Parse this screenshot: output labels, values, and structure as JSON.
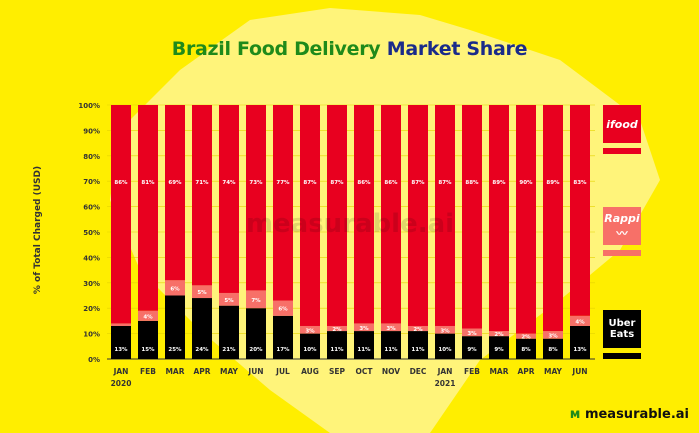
{
  "title": {
    "part1": "Brazil Food Delivery",
    "part2": "Market Share"
  },
  "brand": "measurable.ai",
  "watermark": "measurable.ai",
  "legend": [
    {
      "name": "ifood",
      "color": "#e8001f"
    },
    {
      "name": "Rappi",
      "color": "#f77068"
    },
    {
      "name": "Uber Eats",
      "color": "#000000"
    }
  ],
  "chart_data": {
    "type": "bar",
    "stacked": true,
    "title": "Brazil Food Delivery Market Share",
    "ylabel": "% of Total Charged (USD)",
    "ylim": [
      0,
      100
    ],
    "yticks": [
      "0%",
      "10%",
      "20%",
      "30%",
      "40%",
      "50%",
      "60%",
      "70%",
      "80%",
      "90%",
      "100%"
    ],
    "categories": [
      "JAN",
      "FEB",
      "MAR",
      "APR",
      "MAY",
      "JUN",
      "JUL",
      "AUG",
      "SEP",
      "OCT",
      "NOV",
      "DEC",
      "JAN",
      "FEB",
      "MAR",
      "APR",
      "MAY",
      "JUN"
    ],
    "year_labels": {
      "0": "2020",
      "12": "2021"
    },
    "series": [
      {
        "name": "Uber Eats",
        "color": "#000000",
        "values": [
          13,
          15,
          25,
          24,
          21,
          20,
          17,
          10,
          11,
          11,
          11,
          11,
          10,
          9,
          9,
          8,
          8,
          13
        ]
      },
      {
        "name": "Rappi",
        "color": "#f77068",
        "values": [
          1,
          4,
          6,
          5,
          5,
          7,
          6,
          3,
          2,
          3,
          3,
          2,
          3,
          3,
          2,
          2,
          3,
          4
        ]
      },
      {
        "name": "ifood",
        "color": "#e8001f",
        "values": [
          86,
          81,
          69,
          71,
          74,
          73,
          77,
          87,
          87,
          86,
          86,
          87,
          87,
          88,
          89,
          90,
          89,
          83
        ]
      }
    ]
  }
}
